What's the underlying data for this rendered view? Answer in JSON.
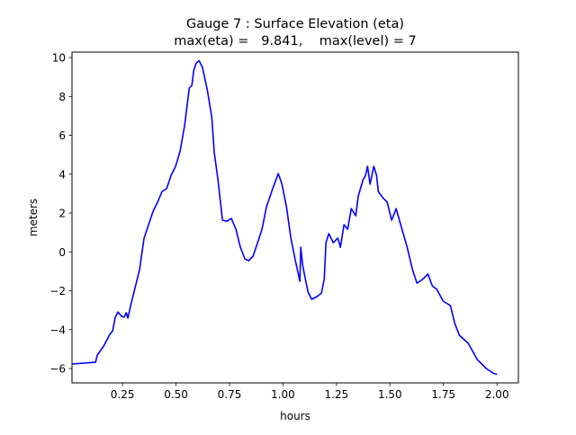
{
  "chart_data": {
    "type": "line",
    "title": "Gauge 7 : Surface Elevation (eta)",
    "subtitle": "max(eta) =   9.841,    max(level) = 7",
    "xlabel": "hours",
    "ylabel": "meters",
    "xlim": [
      0.014,
      2.1
    ],
    "ylim": [
      -6.74,
      10.28
    ],
    "xticks": [
      "0.25",
      "0.50",
      "0.75",
      "1.00",
      "1.25",
      "1.50",
      "1.75",
      "2.00"
    ],
    "xtick_values": [
      0.25,
      0.5,
      0.75,
      1.0,
      1.25,
      1.5,
      1.75,
      2.0
    ],
    "yticks": [
      "−6",
      "−4",
      "−2",
      "0",
      "2",
      "4",
      "6",
      "8",
      "10"
    ],
    "ytick_values": [
      -6,
      -4,
      -2,
      0,
      2,
      4,
      6,
      8,
      10
    ],
    "grid": false,
    "line_color": "#0000ff",
    "series": [
      {
        "x": [
          0.014,
          0.124,
          0.132,
          0.162,
          0.191,
          0.204,
          0.216,
          0.229,
          0.246,
          0.258,
          0.267,
          0.275,
          0.288,
          0.309,
          0.33,
          0.351,
          0.372,
          0.393,
          0.414,
          0.435,
          0.456,
          0.477,
          0.498,
          0.519,
          0.54,
          0.562,
          0.574,
          0.583,
          0.595,
          0.608,
          0.624,
          0.646,
          0.667,
          0.679,
          0.696,
          0.717,
          0.738,
          0.759,
          0.78,
          0.801,
          0.822,
          0.839,
          0.86,
          0.881,
          0.902,
          0.923,
          0.949,
          0.978,
          0.995,
          1.016,
          1.037,
          1.058,
          1.079,
          1.083,
          1.092,
          1.104,
          1.117,
          1.134,
          1.159,
          1.18,
          1.193,
          1.201,
          1.214,
          1.235,
          1.256,
          1.268,
          1.285,
          1.302,
          1.319,
          1.34,
          1.352,
          1.374,
          1.386,
          1.395,
          1.407,
          1.424,
          1.437,
          1.445,
          1.466,
          1.487,
          1.508,
          1.529,
          1.55,
          1.58,
          1.605,
          1.626,
          1.656,
          1.677,
          1.698,
          1.719,
          1.748,
          1.782,
          1.803,
          1.824,
          1.866,
          1.908,
          1.95,
          1.984,
          2.0
        ],
        "y": [
          -5.77,
          -5.68,
          -5.31,
          -4.85,
          -4.24,
          -4.06,
          -3.37,
          -3.09,
          -3.32,
          -3.36,
          -3.13,
          -3.41,
          -2.76,
          -1.84,
          -0.91,
          0.71,
          1.4,
          2.09,
          2.56,
          3.11,
          3.25,
          3.94,
          4.4,
          5.19,
          6.49,
          8.43,
          8.57,
          9.35,
          9.72,
          9.84,
          9.49,
          8.34,
          6.95,
          5.1,
          3.71,
          1.63,
          1.58,
          1.72,
          1.17,
          0.24,
          -0.36,
          -0.45,
          -0.22,
          0.47,
          1.17,
          2.32,
          3.16,
          4.03,
          3.48,
          2.32,
          0.71,
          -0.45,
          -1.51,
          0.24,
          -0.68,
          -1.38,
          -2.07,
          -2.44,
          -2.3,
          -2.12,
          -1.38,
          0.47,
          0.94,
          0.47,
          0.71,
          0.24,
          1.4,
          1.17,
          2.23,
          1.86,
          2.88,
          3.71,
          3.94,
          4.4,
          3.48,
          4.4,
          3.94,
          3.11,
          2.79,
          2.56,
          1.63,
          2.23,
          1.4,
          0.24,
          -0.91,
          -1.61,
          -1.38,
          -1.14,
          -1.75,
          -1.93,
          -2.53,
          -2.76,
          -3.69,
          -4.29,
          -4.71,
          -5.54,
          -6.0,
          -6.25,
          -6.3
        ]
      }
    ]
  }
}
